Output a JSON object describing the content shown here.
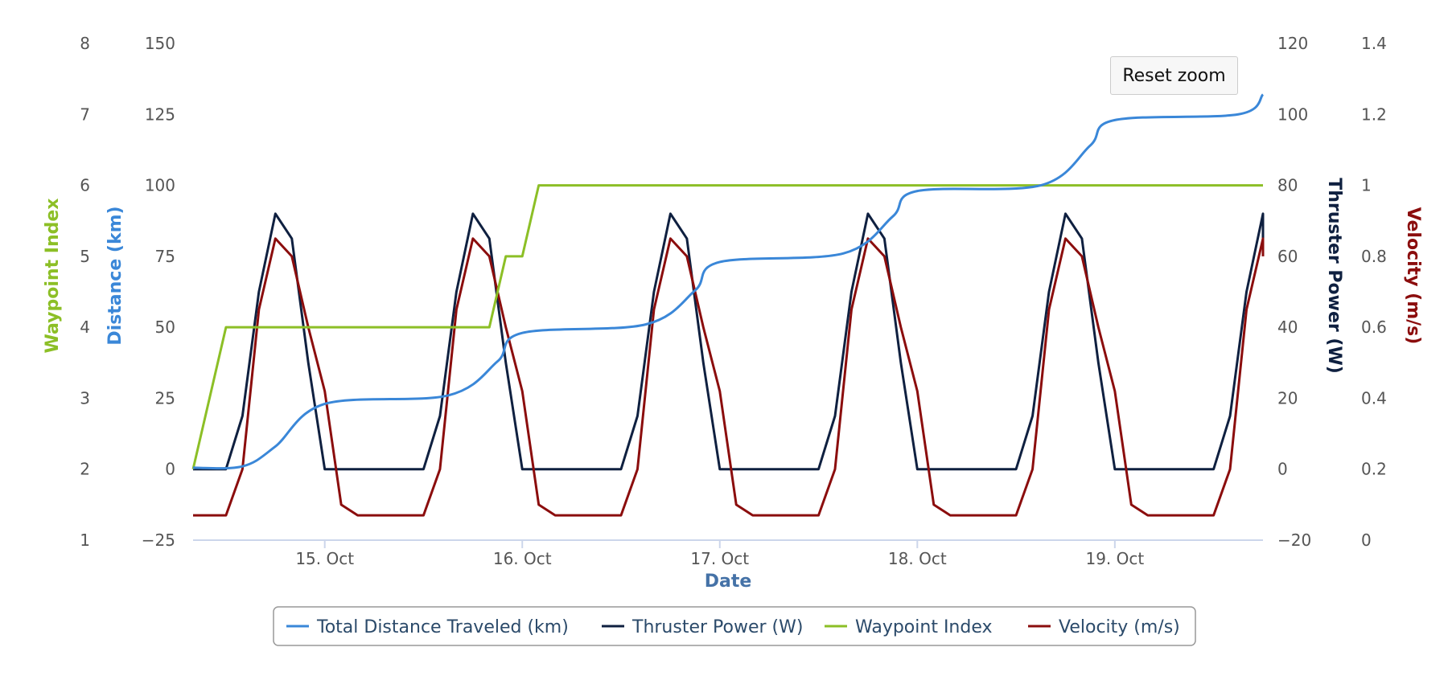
{
  "reset_zoom_label": "Reset zoom",
  "chart_data": {
    "type": "line",
    "title": "",
    "xlabel": "Date",
    "x_ticks": [
      "15. Oct",
      "16. Oct",
      "17. Oct",
      "18. Oct",
      "19. Oct"
    ],
    "x_range": [
      "2019-10-14T08:00",
      "2019-10-19T18:00"
    ],
    "grid": false,
    "legend_position": "bottom-center",
    "y_axes": {
      "waypoint": {
        "label": "Waypoint Index",
        "color": "#8cbf26",
        "range": [
          1,
          8
        ],
        "ticks": [
          "8",
          "7",
          "6",
          "5",
          "4",
          "3",
          "2",
          "1"
        ],
        "side": "left"
      },
      "distance": {
        "label": "Distance (km)",
        "color": "#3a87d8",
        "range": [
          -25,
          150
        ],
        "ticks": [
          "150",
          "125",
          "100",
          "75",
          "50",
          "25",
          "0",
          "−25"
        ],
        "side": "left"
      },
      "power": {
        "label": "Thruster Power (W)",
        "color": "#0f2040",
        "range": [
          -20,
          120
        ],
        "ticks": [
          "120",
          "100",
          "80",
          "60",
          "40",
          "20",
          "0",
          "−20"
        ],
        "side": "right"
      },
      "velocity": {
        "label": "Velocity (m/s)",
        "color": "#8b0d0d",
        "range": [
          0,
          1.4
        ],
        "ticks": [
          "1.4",
          "1.2",
          "1",
          "0.8",
          "0.6",
          "0.4",
          "0.2",
          "0"
        ],
        "side": "right"
      }
    },
    "series": [
      {
        "name": "Total Distance Traveled (km)",
        "axis": "distance",
        "color": "#3a87d8",
        "x": [
          "2019-10-14T08:00",
          "2019-10-14T14:00",
          "2019-10-14T18:00",
          "2019-10-15T00:00",
          "2019-10-15T15:00",
          "2019-10-15T21:00",
          "2019-10-16T00:00",
          "2019-10-16T15:00",
          "2019-10-16T21:00",
          "2019-10-17T00:00",
          "2019-10-17T15:00",
          "2019-10-17T21:00",
          "2019-10-18T00:00",
          "2019-10-18T15:00",
          "2019-10-18T21:00",
          "2019-10-19T00:00",
          "2019-10-19T15:00",
          "2019-10-19T18:00"
        ],
        "values": [
          0.5,
          1,
          8,
          23,
          26,
          38,
          48,
          51,
          63,
          73,
          76,
          89,
          98,
          100,
          114,
          123,
          125,
          132
        ]
      },
      {
        "name": "Thruster Power (W)",
        "axis": "power",
        "color": "#0f2040",
        "daily_pattern_hours": [
          0,
          2,
          4,
          6,
          8,
          10,
          12,
          14,
          16,
          18,
          20,
          22
        ],
        "daily_pattern_values": [
          0,
          0,
          0,
          0,
          0,
          0,
          0,
          15,
          50,
          72,
          65,
          30
        ],
        "peak_value": 72,
        "baseline": 0
      },
      {
        "name": "Waypoint Index",
        "axis": "waypoint",
        "color": "#8cbf26",
        "x": [
          "2019-10-14T08:00",
          "2019-10-14T12:00",
          "2019-10-15T20:00",
          "2019-10-15T22:00",
          "2019-10-16T00:00",
          "2019-10-16T02:00",
          "2019-10-19T18:00"
        ],
        "values": [
          2,
          4,
          4,
          5,
          5,
          6,
          6
        ]
      },
      {
        "name": "Velocity (m/s)",
        "axis": "velocity",
        "color": "#8b0d0d",
        "daily_pattern_hours": [
          0,
          2,
          4,
          6,
          8,
          10,
          12,
          14,
          16,
          18,
          20,
          22
        ],
        "daily_pattern_values": [
          0.42,
          0.1,
          0.07,
          0.07,
          0.07,
          0.07,
          0.07,
          0.2,
          0.65,
          0.85,
          0.8,
          0.6
        ],
        "peak_value": 0.86,
        "baseline": 0.07
      }
    ]
  }
}
